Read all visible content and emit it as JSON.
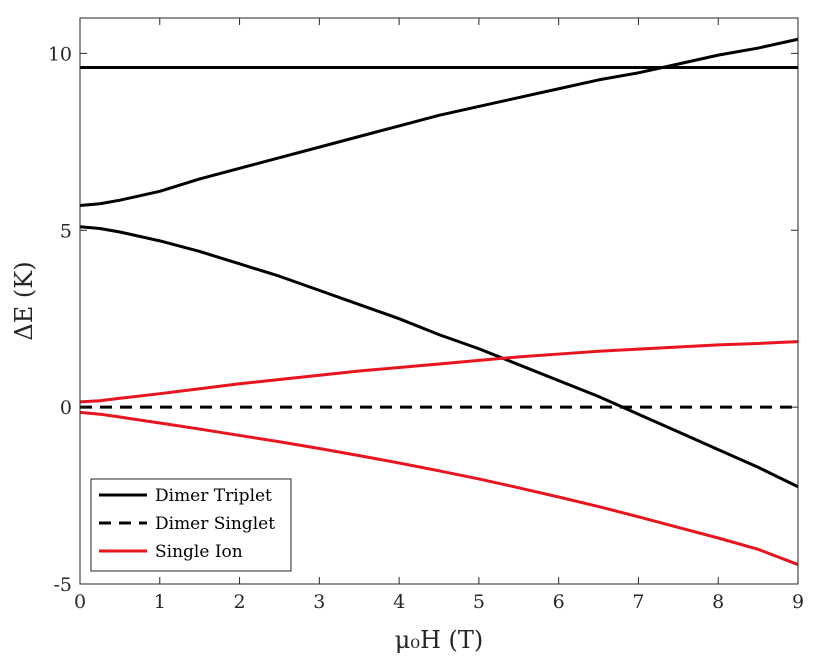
{
  "chart_data": {
    "type": "line",
    "xlabel": "μ₀H (T)",
    "ylabel": "ΔE (K)",
    "xlim": [
      0,
      9
    ],
    "ylim": [
      -5,
      11
    ],
    "x_ticks": [
      0,
      1,
      2,
      3,
      4,
      5,
      6,
      7,
      8,
      9
    ],
    "y_ticks": [
      -5,
      0,
      5,
      10
    ],
    "x_tick_labels": [
      "0",
      "1",
      "2",
      "3",
      "4",
      "5",
      "6",
      "7",
      "8",
      "9"
    ],
    "y_tick_labels": [
      "-5",
      "0",
      "5",
      "10"
    ],
    "grid": false,
    "legend_position": "bottom-left",
    "legend": [
      {
        "label": "Dimer Triplet",
        "color": "#000000",
        "dash": "solid"
      },
      {
        "label": "Dimer Singlet",
        "color": "#000000",
        "dash": "dashed"
      },
      {
        "label": "Single Ion",
        "color": "#e8141e",
        "dash": "solid"
      }
    ],
    "series": [
      {
        "group": "Dimer Triplet",
        "color": "#000000",
        "dash": "solid",
        "x": [
          0,
          9
        ],
        "y": [
          9.6,
          9.6
        ]
      },
      {
        "group": "Dimer Triplet",
        "color": "#000000",
        "dash": "solid",
        "x": [
          0,
          0.25,
          0.5,
          1,
          1.5,
          2,
          2.5,
          3,
          3.5,
          4,
          4.5,
          5,
          5.5,
          6,
          6.5,
          7,
          7.5,
          8,
          8.5,
          9
        ],
        "y": [
          5.7,
          5.75,
          5.85,
          6.1,
          6.45,
          6.75,
          7.05,
          7.35,
          7.65,
          7.95,
          8.25,
          8.5,
          8.75,
          9.0,
          9.25,
          9.45,
          9.7,
          9.95,
          10.15,
          10.4
        ]
      },
      {
        "group": "Dimer Triplet",
        "color": "#000000",
        "dash": "solid",
        "x": [
          0,
          0.25,
          0.5,
          1,
          1.5,
          2,
          2.5,
          3,
          3.5,
          4,
          4.5,
          5,
          5.5,
          6,
          6.5,
          7,
          7.5,
          8,
          8.5,
          9
        ],
        "y": [
          5.1,
          5.05,
          4.95,
          4.7,
          4.4,
          4.05,
          3.7,
          3.3,
          2.9,
          2.5,
          2.05,
          1.65,
          1.2,
          0.75,
          0.3,
          -0.2,
          -0.7,
          -1.2,
          -1.7,
          -2.25
        ]
      },
      {
        "group": "Dimer Singlet",
        "color": "#000000",
        "dash": "dashed",
        "x": [
          0,
          9
        ],
        "y": [
          0,
          0
        ]
      },
      {
        "group": "Single Ion",
        "color": "#e8141e",
        "dash": "solid",
        "x": [
          0,
          0.25,
          0.5,
          1,
          1.5,
          2,
          2.5,
          3,
          3.5,
          4,
          4.5,
          5,
          5.5,
          6,
          6.5,
          7,
          7.5,
          8,
          8.5,
          9
        ],
        "y": [
          0.15,
          0.18,
          0.25,
          0.38,
          0.52,
          0.66,
          0.78,
          0.9,
          1.02,
          1.12,
          1.22,
          1.32,
          1.42,
          1.5,
          1.58,
          1.64,
          1.7,
          1.76,
          1.8,
          1.85
        ]
      },
      {
        "group": "Single Ion",
        "color": "#e8141e",
        "dash": "solid",
        "x": [
          0,
          0.25,
          0.5,
          1,
          1.5,
          2,
          2.5,
          3,
          3.5,
          4,
          4.5,
          5,
          5.5,
          6,
          6.5,
          7,
          7.5,
          8,
          8.5,
          9
        ],
        "y": [
          -0.15,
          -0.2,
          -0.28,
          -0.45,
          -0.62,
          -0.8,
          -0.98,
          -1.17,
          -1.37,
          -1.58,
          -1.8,
          -2.03,
          -2.28,
          -2.54,
          -2.81,
          -3.1,
          -3.4,
          -3.7,
          -4.02,
          -4.45
        ]
      }
    ]
  }
}
